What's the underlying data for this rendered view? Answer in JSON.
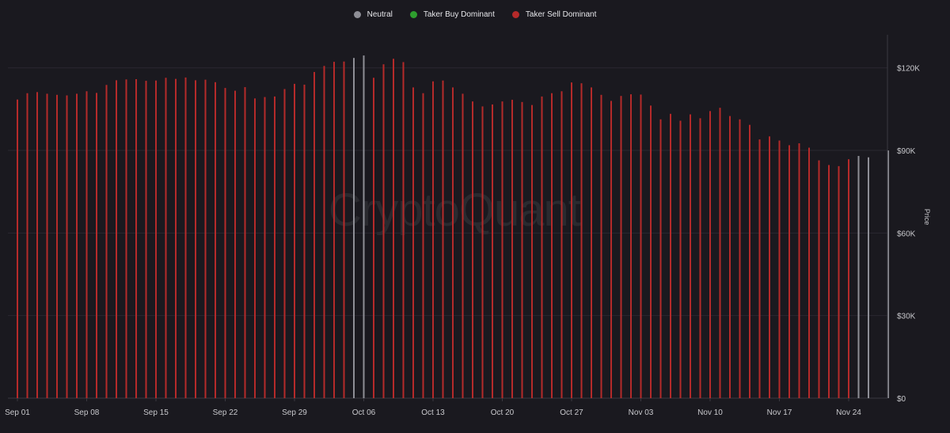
{
  "legend": [
    {
      "label": "Neutral",
      "color": "#8e8e96"
    },
    {
      "label": "Taker Buy Dominant",
      "color": "#2e9e2e"
    },
    {
      "label": "Taker Sell Dominant",
      "color": "#b52a2a"
    }
  ],
  "watermark": "CryptoQuant",
  "chart_data": {
    "type": "bar",
    "ylabel": "Price",
    "ylim": [
      0,
      132000
    ],
    "y_ticks": [
      {
        "value": 0,
        "label": "$0"
      },
      {
        "value": 30000,
        "label": "$30K"
      },
      {
        "value": 60000,
        "label": "$60K"
      },
      {
        "value": 90000,
        "label": "$90K"
      },
      {
        "value": 120000,
        "label": "$120K"
      }
    ],
    "x_ticks": [
      {
        "label": "Sep 01",
        "index": 0
      },
      {
        "label": "Sep 08",
        "index": 7
      },
      {
        "label": "Sep 15",
        "index": 14
      },
      {
        "label": "Sep 22",
        "index": 21
      },
      {
        "label": "Sep 29",
        "index": 28
      },
      {
        "label": "Oct 06",
        "index": 35
      },
      {
        "label": "Oct 13",
        "index": 42
      },
      {
        "label": "Oct 20",
        "index": 49
      },
      {
        "label": "Oct 27",
        "index": 56
      },
      {
        "label": "Nov 03",
        "index": 63
      },
      {
        "label": "Nov 10",
        "index": 70
      },
      {
        "label": "Nov 17",
        "index": 77
      },
      {
        "label": "Nov 24",
        "index": 84
      }
    ],
    "grid": true,
    "legend_position": "top-center",
    "start_date": "2025-09-01",
    "colors": {
      "neutral": "#8e8e96",
      "sell": "#b52a2a",
      "buy": "#2e9e2e"
    },
    "values": [
      108500,
      110800,
      111200,
      110600,
      110200,
      110000,
      110600,
      111500,
      110900,
      113800,
      115500,
      115800,
      115900,
      115300,
      115400,
      116400,
      116000,
      116500,
      115500,
      115700,
      114800,
      112700,
      111700,
      113000,
      108900,
      109400,
      109600,
      112300,
      114200,
      113900,
      118500,
      120700,
      122200,
      122300,
      123600,
      124500,
      116400,
      121300,
      123300,
      122100,
      112900,
      110800,
      115100,
      115400,
      112900,
      110600,
      107800,
      106000,
      106700,
      107800,
      108400,
      107600,
      106500,
      109600,
      110800,
      111500,
      114700,
      114400,
      112900,
      110200,
      108000,
      109800,
      110400,
      110300,
      106300,
      101300,
      103300,
      100800,
      103100,
      101700,
      104300,
      105500,
      102500,
      101300,
      99300,
      94000,
      95100,
      93600,
      91900,
      92600,
      91000,
      86400,
      84700,
      84300,
      86800,
      88000,
      87500,
      null,
      90000
    ],
    "dominance": [
      "sell",
      "sell",
      "sell",
      "sell",
      "sell",
      "sell",
      "sell",
      "sell",
      "sell",
      "sell",
      "sell",
      "sell",
      "sell",
      "sell",
      "sell",
      "sell",
      "sell",
      "sell",
      "sell",
      "sell",
      "sell",
      "sell",
      "sell",
      "sell",
      "sell",
      "sell",
      "sell",
      "sell",
      "sell",
      "sell",
      "sell",
      "sell",
      "sell",
      "sell",
      "neutral",
      "neutral",
      "sell",
      "sell",
      "sell",
      "sell",
      "sell",
      "sell",
      "sell",
      "sell",
      "sell",
      "sell",
      "sell",
      "sell",
      "sell",
      "sell",
      "sell",
      "sell",
      "sell",
      "sell",
      "sell",
      "sell",
      "sell",
      "sell",
      "sell",
      "sell",
      "sell",
      "sell",
      "sell",
      "sell",
      "sell",
      "sell",
      "sell",
      "sell",
      "sell",
      "sell",
      "sell",
      "sell",
      "sell",
      "sell",
      "sell",
      "sell",
      "sell",
      "sell",
      "sell",
      "sell",
      "sell",
      "sell",
      "sell",
      "sell",
      "sell",
      "neutral",
      "neutral",
      null,
      "neutral"
    ]
  }
}
